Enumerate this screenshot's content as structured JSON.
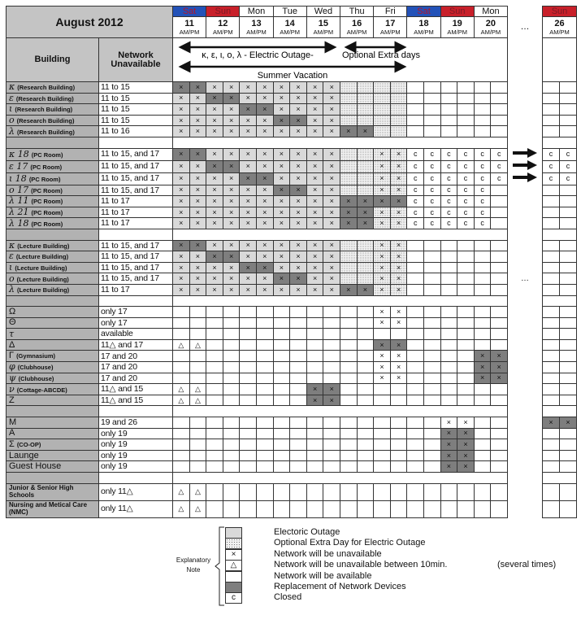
{
  "title": "August 2012",
  "header": {
    "building": "Building",
    "network": "Network Unavailable",
    "outage_label": "κ, ε, ι, o, λ - Electric Outage-",
    "optional_label": "Optional Extra days",
    "vacation_label": "Summer Vacation",
    "ellipsis": "…"
  },
  "days": [
    {
      "name": "Sat",
      "date": "11",
      "ampm": "AM/PM",
      "kind": "sat"
    },
    {
      "name": "Sun",
      "date": "12",
      "ampm": "AM/PM",
      "kind": "sun"
    },
    {
      "name": "Mon",
      "date": "13",
      "ampm": "AM/PM",
      "kind": "wk"
    },
    {
      "name": "Tue",
      "date": "14",
      "ampm": "AM/PM",
      "kind": "wk"
    },
    {
      "name": "Wed",
      "date": "15",
      "ampm": "AM/PM",
      "kind": "wk"
    },
    {
      "name": "Thu",
      "date": "16",
      "ampm": "AM/PM",
      "kind": "wk"
    },
    {
      "name": "Fri",
      "date": "17",
      "ampm": "AM/PM",
      "kind": "wk"
    },
    {
      "name": "Sat",
      "date": "18",
      "ampm": "AM/PM",
      "kind": "sat"
    },
    {
      "name": "Sun",
      "date": "19",
      "ampm": "AM/PM",
      "kind": "sun"
    },
    {
      "name": "Mon",
      "date": "20",
      "ampm": "AM/PM",
      "kind": "wk"
    }
  ],
  "day26": {
    "name": "Sun",
    "date": "26",
    "ampm": "AM/PM",
    "kind": "sun"
  },
  "groups": [
    {
      "rows": [
        {
          "sym": "κ",
          "sub": "(Research Building)",
          "network": "11 to 15",
          "cells": "Dx Dx Lx Lx Lx Lx Lx Lx Lx Lx S S S S _ _ _ _ _ _ _ _"
        },
        {
          "sym": "ε",
          "sub": "(Research Building)",
          "network": "11 to 15",
          "cells": "Lx Lx Dx Dx Lx Lx Lx Lx Lx Lx S S S S _ _ _ _ _ _ _ _"
        },
        {
          "sym": "ι",
          "sub": "(Research Building)",
          "network": "11 to 15",
          "cells": "Lx Lx Lx Lx Dx Dx Lx Lx Lx Lx S S S S _ _ _ _ _ _ _ _"
        },
        {
          "sym": "ο",
          "sub": "(Research Building)",
          "network": "11 to 15",
          "cells": "Lx Lx Lx Lx Lx Lx Dx Dx Lx Lx S S S S _ _ _ _ _ _ _ _"
        },
        {
          "sym": "λ",
          "sub": "(Research Building)",
          "network": "11 to 16",
          "cells": "Lx Lx Lx Lx Lx Lx Lx Lx Lx Lx Dx Dx S S _ _ _ _ _ _ _ _"
        }
      ]
    },
    {
      "rows": [
        {
          "sym": "κ 18",
          "sub": "(PC Room)",
          "network": "11 to 15, and 17",
          "gap": "arrow",
          "cells": "Dx Dx Lx Lx Lx Lx Lx Lx Lx Lx S S Sx Sx c c c c c c c c"
        },
        {
          "sym": "ε 17",
          "sub": "(PC Room)",
          "network": "11 to 15, and 17",
          "gap": "arrow",
          "cells": "Lx Lx Dx Dx Lx Lx Lx Lx Lx Lx S S Sx Sx c c c c c c c c"
        },
        {
          "sym": "ι 18",
          "sub": "(PC Room)",
          "network": "11 to 15, and 17",
          "gap": "arrow",
          "cells": "Lx Lx Lx Lx Dx Dx Lx Lx Lx Lx S S Sx Sx c c c c c c c c"
        },
        {
          "sym": "ο 17",
          "sub": "(PC Room)",
          "network": "11 to 15, and 17",
          "cells": "Lx Lx Lx Lx Lx Lx Dx Dx Lx Lx S S Sx Sx c c c c c _ _ _"
        },
        {
          "sym": "λ 11",
          "sub": "(PC Room)",
          "network": "11 to 17",
          "cells": "Lx Lx Lx Lx Lx Lx Lx Lx Lx Lx Dx Dx Dx Dx c c c c c _ _ _"
        },
        {
          "sym": "λ 21",
          "sub": "(PC Room)",
          "network": "11 to 17",
          "cells": "Lx Lx Lx Lx Lx Lx Lx Lx Lx Lx Dx Dx Sx Sx c c c c c _ _ _"
        },
        {
          "sym": "λ 18",
          "sub": "(PC Room)",
          "network": "11 to 17",
          "cells": "Lx Lx Lx Lx Lx Lx Lx Lx Lx Lx Dx Dx Sx Sx c c c c c _ _ _"
        }
      ]
    },
    {
      "rows": [
        {
          "sym": "κ",
          "sub": "(Lecture Building)",
          "network": "11 to 15, and 17",
          "cells": "Dx Dx Lx Lx Lx Lx Lx Lx Lx Lx S S Sx Sx _ _ _ _ _ _ _ _"
        },
        {
          "sym": "ε",
          "sub": "(Lecture Building)",
          "network": "11 to 15, and 17",
          "cells": "Lx Lx Dx Dx Lx Lx Lx Lx Lx Lx S S Sx Sx _ _ _ _ _ _ _ _"
        },
        {
          "sym": "ι",
          "sub": "(Lecture Building)",
          "network": "11 to 15, and 17",
          "cells": "Lx Lx Lx Lx Dx Dx Lx Lx Lx Lx S S Sx Sx _ _ _ _ _ _ _ _"
        },
        {
          "sym": "ο",
          "sub": "(Lecture Building)",
          "network": "11 to 15, and 17",
          "gap": "ellipsis",
          "cells": "Lx Lx Lx Lx Lx Lx Dx Dx Lx Lx S S Sx Sx _ _ _ _ _ _ _ _"
        },
        {
          "sym": "λ",
          "sub": "(Lecture Building)",
          "network": "11 to 17",
          "cells": "Lx Lx Lx Lx Lx Lx Lx Lx Lx Lx Dx Dx Sx Sx _ _ _ _ _ _ _ _"
        }
      ]
    },
    {
      "rows": [
        {
          "sym": "Ω",
          "sub": "",
          "network": "only 17",
          "plain": true,
          "cells": "_ _ _ _ _ _ _ _ _ _ _ _ x x _ _ _ _ _ _ _ _"
        },
        {
          "sym": "Θ",
          "sub": "",
          "network": "only 17",
          "plain": true,
          "cells": "_ _ _ _ _ _ _ _ _ _ _ _ x x _ _ _ _ _ _ _ _"
        },
        {
          "sym": "τ",
          "sub": "",
          "network": "available",
          "cells": "_ _ _ _ _ _ _ _ _ _ _ _ _ _ _ _ _ _ _ _ _ _"
        },
        {
          "sym": "Δ",
          "sub": "",
          "network": "11△ and 17",
          "plain": true,
          "cells": "t t _ _ _ _ _ _ _ _ _ _ Dx Dx _ _ _ _ _ _ _ _"
        },
        {
          "sym": "Γ",
          "sub": "(Gymnasium)",
          "network": "17 and 20",
          "plain": true,
          "cells": "_ _ _ _ _ _ _ _ _ _ _ _ x x _ _ _ _ Dx Dx _ _"
        },
        {
          "sym": "φ",
          "sub": "(Clubhouse)",
          "network": "17 and 20",
          "cells": "_ _ _ _ _ _ _ _ _ _ _ _ x x _ _ _ _ Dx Dx _ _"
        },
        {
          "sym": "ψ",
          "sub": "(Clubhouse)",
          "network": "17 and 20",
          "cells": "_ _ _ _ _ _ _ _ _ _ _ _ x x _ _ _ _ Dx Dx _ _"
        },
        {
          "sym": "ν",
          "sub": "(Cottage-ABCDE)",
          "network": "11△ and 15",
          "cells": "t t _ _ _ _ _ _ Dx Dx _ _ _ _ _ _ _ _ _ _ _ _"
        },
        {
          "sym": "Z",
          "sub": "",
          "network": "11△ and 15",
          "plain": true,
          "cells": "t t _ _ _ _ _ _ Dx Dx _ _ _ _ _ _ _ _ _ _ _ _"
        }
      ]
    },
    {
      "rows": [
        {
          "sym": "M",
          "sub": "",
          "network": "19 and 26",
          "plain": true,
          "cells": "_ _ _ _ _ _ _ _ _ _ _ _ _ _ _ _ x x _ _ Dx Dx"
        },
        {
          "sym": "A",
          "sub": "",
          "network": "only 19",
          "plain": true,
          "cells": "_ _ _ _ _ _ _ _ _ _ _ _ _ _ _ _ Dx Dx _ _ _ _"
        },
        {
          "sym": "Σ",
          "sub": "(CO-OP)",
          "network": "only 19",
          "plain": true,
          "cells": "_ _ _ _ _ _ _ _ _ _ _ _ _ _ _ _ Dx Dx _ _ _ _"
        },
        {
          "sym": "Launge",
          "sub": "",
          "network": "only 19",
          "plain": true,
          "cells": "_ _ _ _ _ _ _ _ _ _ _ _ _ _ _ _ Dx Dx _ _ _ _"
        },
        {
          "sym": "Guest House",
          "sub": "",
          "network": "only 19",
          "plain": true,
          "cells": "_ _ _ _ _ _ _ _ _ _ _ _ _ _ _ _ Dx Dx _ _ _ _"
        }
      ]
    },
    {
      "tall": true,
      "rows": [
        {
          "sym": "Junior & Senior High Schools",
          "sub": "",
          "network": "only 11△",
          "wrap": true,
          "cells": "t t _ _ _ _ _ _ _ _ _ _ _ _ _ _ _ _ _ _ _ _"
        },
        {
          "sym": "Nursing and Metical Care (NMC)",
          "sub": "",
          "network": "only 11△",
          "wrap": true,
          "cells": "t t _ _ _ _ _ _ _ _ _ _ _ _ _ _ _ _ _ _ _ _"
        }
      ]
    }
  ],
  "legend": {
    "title": "Explanatory Note",
    "items": [
      {
        "cell": "L",
        "label": "Electoric Outage"
      },
      {
        "cell": "S",
        "label": "Optional Extra Day for Electric Outage"
      },
      {
        "cell": "x",
        "label": "Network will be unavailable"
      },
      {
        "cell": "t",
        "label": "Network will be unavailable between 10min.",
        "note": "(several times)"
      },
      {
        "cell": "_",
        "label": "Network will be available"
      },
      {
        "cell": "D",
        "label": "Replacement of Network Devices"
      },
      {
        "cell": "c",
        "label": "Closed"
      }
    ]
  },
  "marks": {
    "x": "×",
    "t": "△",
    "c": "c"
  },
  "colors": {
    "saturday": "#2352b8",
    "sunday": "#c8202a",
    "outage": "#d9d9d9",
    "replacement": "#7e7e7e",
    "label_bg": "#b2b2b2"
  }
}
